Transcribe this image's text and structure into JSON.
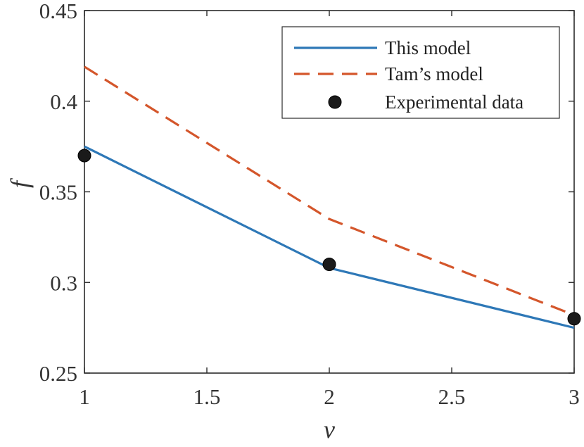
{
  "chart_data": {
    "type": "line",
    "title": "",
    "xlabel": "ν",
    "ylabel": "f",
    "xlim": [
      1,
      3
    ],
    "ylim": [
      0.25,
      0.45
    ],
    "x_ticks": [
      "1",
      "1.5",
      "2",
      "2.5",
      "3"
    ],
    "x_tick_values": [
      1,
      1.5,
      2,
      2.5,
      3
    ],
    "y_ticks": [
      "0.25",
      "0.3",
      "0.35",
      "0.4",
      "0.45"
    ],
    "y_tick_values": [
      0.25,
      0.3,
      0.35,
      0.4,
      0.45
    ],
    "grid": false,
    "legend_position": "top-right",
    "series": [
      {
        "name": "This model",
        "style": "solid",
        "color": "#2e78b7",
        "x": [
          1,
          2,
          3
        ],
        "y": [
          0.375,
          0.308,
          0.275
        ]
      },
      {
        "name": "Tam’s model",
        "style": "dashed",
        "color": "#d4562b",
        "x": [
          1,
          2,
          3
        ],
        "y": [
          0.419,
          0.335,
          0.282
        ]
      },
      {
        "name": "Experimental data",
        "style": "markers",
        "color": "#1a1a1a",
        "x": [
          1,
          2,
          3
        ],
        "y": [
          0.37,
          0.31,
          0.28
        ]
      }
    ]
  }
}
